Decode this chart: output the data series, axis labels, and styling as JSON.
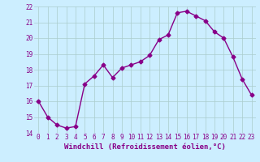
{
  "x": [
    0,
    1,
    2,
    3,
    4,
    5,
    6,
    7,
    8,
    9,
    10,
    11,
    12,
    13,
    14,
    15,
    16,
    17,
    18,
    19,
    20,
    21,
    22,
    23
  ],
  "y": [
    16.0,
    15.0,
    14.5,
    14.3,
    14.4,
    17.1,
    17.6,
    18.3,
    17.5,
    18.1,
    18.3,
    18.5,
    18.9,
    19.9,
    20.2,
    21.6,
    21.7,
    21.4,
    21.1,
    20.4,
    20.0,
    18.8,
    17.4,
    16.4
  ],
  "line_color": "#880088",
  "marker": "D",
  "marker_size": 2.5,
  "bg_color": "#cceeff",
  "grid_color": "#aacccc",
  "xlabel": "Windchill (Refroidissement éolien,°C)",
  "xlabel_color": "#880088",
  "ylim": [
    14,
    22
  ],
  "xlim": [
    -0.5,
    23.5
  ],
  "yticks": [
    14,
    15,
    16,
    17,
    18,
    19,
    20,
    21,
    22
  ],
  "xticks": [
    0,
    1,
    2,
    3,
    4,
    5,
    6,
    7,
    8,
    9,
    10,
    11,
    12,
    13,
    14,
    15,
    16,
    17,
    18,
    19,
    20,
    21,
    22,
    23
  ],
  "tick_fontsize": 5.5,
  "xlabel_fontsize": 6.5
}
